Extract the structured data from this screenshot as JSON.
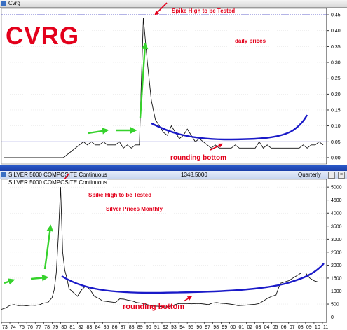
{
  "colors": {
    "price": "#111111",
    "curve": "#1a1ac8",
    "arrow": "#36d22c",
    "annotation": "#e3001b",
    "refline": "#3a3ac0"
  },
  "top_pane": {
    "window_title": "Cvrg",
    "ticker_overlay": "CVRG",
    "spike_label": "Spike High to be Tested",
    "period_label": "daily prices",
    "bottom_label": "rounding bottom"
  },
  "bottom_pane": {
    "window_title": "SILVER 5000 COMPOSITE Continuous",
    "legend_title": "SILVER 5000 COMPOSITE Continuous",
    "last_value": "1348.5000",
    "periodicity": "Quarterly",
    "spike_label": "Spike High to be Tested",
    "period_label": "Silver Prices Monthly",
    "bottom_label": "rounding bottom"
  },
  "chart_data": [
    {
      "type": "line",
      "title": "CVRG",
      "subtitle": "daily prices",
      "yticks": [
        0.0,
        0.05,
        0.1,
        0.15,
        0.2,
        0.25,
        0.3,
        0.35,
        0.4,
        0.45
      ],
      "ylim": [
        -0.02,
        0.47
      ],
      "reference_lines": [
        0.05,
        0.45
      ],
      "series": [
        {
          "values": [
            0.0,
            0.0,
            0.0,
            0.0,
            0.0,
            0.0,
            0.0,
            0.0,
            0.0,
            0.0,
            0.0,
            0.0,
            0.0,
            0.0,
            0.0,
            0.0,
            0.01,
            0.02,
            0.03,
            0.04,
            0.05,
            0.04,
            0.05,
            0.04,
            0.04,
            0.05,
            0.04,
            0.04,
            0.04,
            0.05,
            0.03,
            0.04,
            0.03,
            0.04,
            0.04,
            0.44,
            0.3,
            0.18,
            0.12,
            0.1,
            0.08,
            0.07,
            0.1,
            0.08,
            0.06,
            0.07,
            0.09,
            0.07,
            0.05,
            0.06,
            0.05,
            0.04,
            0.03,
            0.04,
            0.03,
            0.03,
            0.03,
            0.03,
            0.04,
            0.03,
            0.03,
            0.03,
            0.03,
            0.03,
            0.05,
            0.03,
            0.04,
            0.03,
            0.03,
            0.03,
            0.03,
            0.03,
            0.03,
            0.03,
            0.03,
            0.04,
            0.03,
            0.04,
            0.04,
            0.05,
            0.04
          ]
        }
      ]
    },
    {
      "type": "line",
      "title": "SILVER 5000 COMPOSITE Continuous",
      "subtitle": "Silver Prices Monthly",
      "categories": [
        "73",
        "74",
        "75",
        "76",
        "77",
        "78",
        "79",
        "80",
        "81",
        "82",
        "83",
        "84",
        "85",
        "86",
        "87",
        "88",
        "89",
        "90",
        "91",
        "92",
        "93",
        "94",
        "95",
        "96",
        "97",
        "98",
        "99",
        "00",
        "01",
        "02",
        "03",
        "04",
        "05",
        "06",
        "07",
        "08",
        "09",
        "10",
        "11"
      ],
      "yticks": [
        0,
        500,
        1000,
        1500,
        2000,
        2500,
        3000,
        3500,
        4000,
        4500,
        5000
      ],
      "ylim": [
        -200,
        5300
      ],
      "last_value": 1348.5,
      "series": [
        {
          "x": [
            73.0,
            73.5,
            74.0,
            74.5,
            75.0,
            75.5,
            76.0,
            76.5,
            77.0,
            77.5,
            78.0,
            78.5,
            79.0,
            79.25,
            79.5,
            79.75,
            80.0,
            80.25,
            80.5,
            80.75,
            81.0,
            81.5,
            82.0,
            82.5,
            83.0,
            83.5,
            84.0,
            84.5,
            85.0,
            85.5,
            86.0,
            86.5,
            87.0,
            87.5,
            88.0,
            88.5,
            89.0,
            89.5,
            90.0,
            90.5,
            91.0,
            91.5,
            92.0,
            92.5,
            93.0,
            93.5,
            94.0,
            94.5,
            95.0,
            95.5,
            96.0,
            96.5,
            97.0,
            97.5,
            98.0,
            98.5,
            99.0,
            99.5,
            100.0,
            100.5,
            101.0,
            101.5,
            102.0,
            102.5,
            103.0,
            103.5,
            104.0,
            104.5,
            105.0,
            105.5,
            106.0,
            106.5,
            107.0,
            107.5,
            108.0,
            108.5,
            109.0,
            109.5,
            110.0,
            110.5
          ],
          "values": [
            300,
            350,
            450,
            480,
            440,
            450,
            430,
            460,
            450,
            470,
            540,
            560,
            750,
            1050,
            1700,
            3200,
            5000,
            2500,
            1800,
            1500,
            1100,
            950,
            800,
            1050,
            1200,
            1050,
            800,
            720,
            620,
            600,
            580,
            560,
            700,
            690,
            650,
            620,
            560,
            540,
            500,
            460,
            420,
            420,
            400,
            390,
            420,
            470,
            520,
            520,
            520,
            510,
            520,
            520,
            500,
            480,
            540,
            560,
            530,
            520,
            500,
            480,
            440,
            450,
            460,
            480,
            490,
            520,
            620,
            720,
            800,
            850,
            1300,
            1350,
            1400,
            1500,
            1600,
            1700,
            1700,
            1500,
            1400,
            1348
          ]
        }
      ]
    }
  ]
}
